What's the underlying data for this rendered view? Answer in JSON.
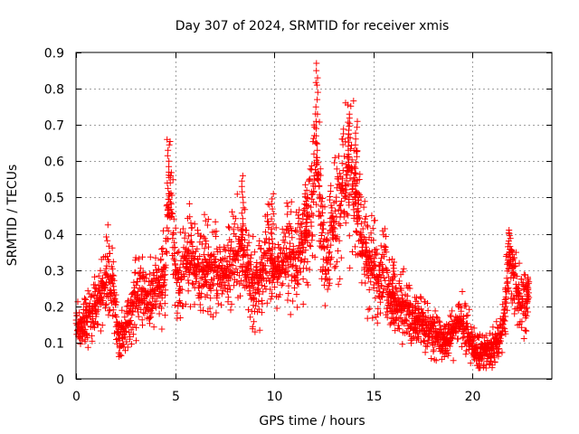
{
  "chart_data": {
    "type": "scatter",
    "title": "Day 307 of 2024, SRMTID for receiver xmis",
    "xlabel": "GPS time / hours",
    "ylabel": "SRMTID / TECUs",
    "xlim": [
      0,
      24
    ],
    "ylim": [
      0,
      0.9
    ],
    "x_ticks": [
      0,
      5,
      10,
      15,
      20
    ],
    "x_tick_labels": [
      "0",
      "5",
      "10",
      "15",
      "20"
    ],
    "y_ticks": [
      0,
      0.1,
      0.2,
      0.3,
      0.4,
      0.5,
      0.6,
      0.7,
      0.8,
      0.9
    ],
    "y_tick_labels": [
      "0",
      "0.1",
      "0.2",
      "0.3",
      "0.4",
      "0.5",
      "0.6",
      "0.7",
      "0.8",
      "0.9"
    ],
    "grid": true,
    "marker": "+",
    "color": "#ff0000",
    "series": [
      {
        "name": "SRMTID",
        "envelope": [
          [
            0.0,
            0.16
          ],
          [
            0.2,
            0.14
          ],
          [
            0.5,
            0.17
          ],
          [
            0.8,
            0.18
          ],
          [
            1.0,
            0.2
          ],
          [
            1.3,
            0.25
          ],
          [
            1.6,
            0.3
          ],
          [
            1.9,
            0.25
          ],
          [
            2.1,
            0.12
          ],
          [
            2.4,
            0.13
          ],
          [
            2.7,
            0.18
          ],
          [
            3.0,
            0.22
          ],
          [
            3.3,
            0.24
          ],
          [
            3.6,
            0.22
          ],
          [
            3.9,
            0.25
          ],
          [
            4.2,
            0.26
          ],
          [
            4.5,
            0.3
          ],
          [
            4.7,
            0.5
          ],
          [
            4.9,
            0.4
          ],
          [
            5.1,
            0.25
          ],
          [
            5.4,
            0.3
          ],
          [
            5.7,
            0.32
          ],
          [
            6.0,
            0.3
          ],
          [
            6.3,
            0.28
          ],
          [
            6.6,
            0.32
          ],
          [
            7.0,
            0.3
          ],
          [
            7.3,
            0.28
          ],
          [
            7.6,
            0.3
          ],
          [
            8.0,
            0.33
          ],
          [
            8.3,
            0.38
          ],
          [
            8.6,
            0.3
          ],
          [
            9.0,
            0.27
          ],
          [
            9.3,
            0.28
          ],
          [
            9.7,
            0.35
          ],
          [
            10.0,
            0.3
          ],
          [
            10.3,
            0.32
          ],
          [
            10.6,
            0.34
          ],
          [
            11.0,
            0.33
          ],
          [
            11.3,
            0.35
          ],
          [
            11.6,
            0.38
          ],
          [
            11.9,
            0.45
          ],
          [
            12.1,
            0.62
          ],
          [
            12.3,
            0.5
          ],
          [
            12.6,
            0.3
          ],
          [
            12.9,
            0.42
          ],
          [
            13.2,
            0.45
          ],
          [
            13.5,
            0.55
          ],
          [
            13.8,
            0.58
          ],
          [
            14.1,
            0.5
          ],
          [
            14.4,
            0.4
          ],
          [
            14.7,
            0.33
          ],
          [
            15.0,
            0.3
          ],
          [
            15.3,
            0.28
          ],
          [
            15.6,
            0.3
          ],
          [
            15.9,
            0.22
          ],
          [
            16.2,
            0.2
          ],
          [
            16.5,
            0.2
          ],
          [
            16.8,
            0.18
          ],
          [
            17.1,
            0.17
          ],
          [
            17.4,
            0.16
          ],
          [
            17.7,
            0.14
          ],
          [
            18.0,
            0.13
          ],
          [
            18.3,
            0.12
          ],
          [
            18.6,
            0.1
          ],
          [
            18.9,
            0.12
          ],
          [
            19.2,
            0.15
          ],
          [
            19.5,
            0.15
          ],
          [
            19.8,
            0.12
          ],
          [
            20.1,
            0.08
          ],
          [
            20.4,
            0.07
          ],
          [
            20.7,
            0.08
          ],
          [
            21.0,
            0.08
          ],
          [
            21.3,
            0.1
          ],
          [
            21.6,
            0.16
          ],
          [
            21.8,
            0.3
          ],
          [
            22.0,
            0.32
          ],
          [
            22.2,
            0.25
          ],
          [
            22.5,
            0.2
          ],
          [
            22.8,
            0.22
          ]
        ],
        "peaks": [
          [
            4.65,
            0.66
          ],
          [
            8.4,
            0.56
          ],
          [
            9.9,
            0.51
          ],
          [
            11.6,
            0.52
          ],
          [
            12.15,
            0.87
          ],
          [
            13.75,
            0.73
          ],
          [
            14.15,
            0.71
          ],
          [
            16.0,
            0.33
          ],
          [
            21.85,
            0.41
          ],
          [
            22.8,
            0.28
          ]
        ]
      }
    ]
  }
}
